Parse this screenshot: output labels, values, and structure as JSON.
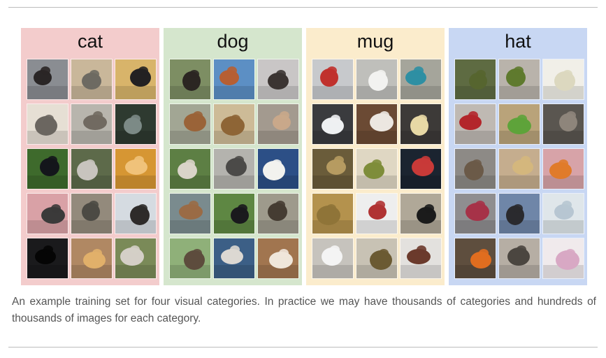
{
  "figure": {
    "panels": [
      {
        "title": "cat",
        "bg": "#f3cccc",
        "images": [
          {
            "bg": "#8a8d92",
            "fg": "#2a2626"
          },
          {
            "bg": "#c9b79a",
            "fg": "#6d6a62"
          },
          {
            "bg": "#d8b46a",
            "fg": "#232122"
          },
          {
            "bg": "#e6dfd4",
            "fg": "#6b6660"
          },
          {
            "bg": "#b8b5ad",
            "fg": "#716a61"
          },
          {
            "bg": "#2e3a30",
            "fg": "#7c8a86"
          },
          {
            "bg": "#3e6a2c",
            "fg": "#14161b"
          },
          {
            "bg": "#5d6a4a",
            "fg": "#c8c4be"
          },
          {
            "bg": "#d69633",
            "fg": "#f0c27a"
          },
          {
            "bg": "#d9a1a6",
            "fg": "#3b3a3a"
          },
          {
            "bg": "#938a7c",
            "fg": "#4c4a44"
          },
          {
            "bg": "#d5dbe1",
            "fg": "#2e2b2a"
          },
          {
            "bg": "#1a1a1c",
            "fg": "#050505"
          },
          {
            "bg": "#b08863",
            "fg": "#e1b06a"
          },
          {
            "bg": "#7a8a58",
            "fg": "#d4cfc7"
          }
        ]
      },
      {
        "title": "dog",
        "bg": "#d5e6cd",
        "images": [
          {
            "bg": "#7d8e63",
            "fg": "#2b2622"
          },
          {
            "bg": "#5c8fc4",
            "fg": "#b65f33"
          },
          {
            "bg": "#c9c6c6",
            "fg": "#3b3432"
          },
          {
            "bg": "#a2a694",
            "fg": "#9a6338"
          },
          {
            "bg": "#cdbb97",
            "fg": "#8e6536"
          },
          {
            "bg": "#a39a8f",
            "fg": "#c9a88a"
          },
          {
            "bg": "#5d7f44",
            "fg": "#d9d4c9"
          },
          {
            "bg": "#b4b3ae",
            "fg": "#4b4a48"
          },
          {
            "bg": "#2c4f86",
            "fg": "#f2f2ee"
          },
          {
            "bg": "#7a8b8e",
            "fg": "#9a6b45"
          },
          {
            "bg": "#5e8743",
            "fg": "#1a1a1d"
          },
          {
            "bg": "#9e9a8c",
            "fg": "#453c32"
          },
          {
            "bg": "#8fb079",
            "fg": "#5d4c3d"
          },
          {
            "bg": "#3c5f86",
            "fg": "#dcd8d2"
          },
          {
            "bg": "#a1754f",
            "fg": "#efe6da"
          }
        ]
      },
      {
        "title": "mug",
        "bg": "#fbeccc",
        "images": [
          {
            "bg": "#c7c9cc",
            "fg": "#c0312d"
          },
          {
            "bg": "#bfbfbb",
            "fg": "#f2f2f0"
          },
          {
            "bg": "#a5a59b",
            "fg": "#2e8fa3"
          },
          {
            "bg": "#3a3b3e",
            "fg": "#eef0f2"
          },
          {
            "bg": "#6b4a34",
            "fg": "#ece7e1"
          },
          {
            "bg": "#3d3a38",
            "fg": "#e7d8a5"
          },
          {
            "bg": "#6a5c3a",
            "fg": "#b69b61"
          },
          {
            "bg": "#dfd7c3",
            "fg": "#7e8d3a"
          },
          {
            "bg": "#1b2430",
            "fg": "#c83a38"
          },
          {
            "bg": "#b4924d",
            "fg": "#8f7438"
          },
          {
            "bg": "#eeeeee",
            "fg": "#b03333"
          },
          {
            "bg": "#b0a898",
            "fg": "#1b1b1b"
          },
          {
            "bg": "#c6c3bd",
            "fg": "#f4f4f4"
          },
          {
            "bg": "#c8c2b4",
            "fg": "#6b5a32"
          },
          {
            "bg": "#e3e1de",
            "fg": "#6b3a2c"
          }
        ]
      },
      {
        "title": "hat",
        "bg": "#c8d7f3",
        "images": [
          {
            "bg": "#5e6b42",
            "fg": "#56652f"
          },
          {
            "bg": "#b9b3ab",
            "fg": "#5f7a2e"
          },
          {
            "bg": "#f1efe8",
            "fg": "#dcd8bf"
          },
          {
            "bg": "#bfb9b3",
            "fg": "#b3262b"
          },
          {
            "bg": "#b9a37a",
            "fg": "#5ea33a"
          },
          {
            "bg": "#5a5650",
            "fg": "#8e857b"
          },
          {
            "bg": "#8d8a86",
            "fg": "#6b5a48"
          },
          {
            "bg": "#c5ad8e",
            "fg": "#d4b77d"
          },
          {
            "bg": "#d7a3a8",
            "fg": "#e07b2a"
          },
          {
            "bg": "#8f8e90",
            "fg": "#a63248"
          },
          {
            "bg": "#6f86a8",
            "fg": "#2a2a2e"
          },
          {
            "bg": "#dfe6ea",
            "fg": "#b7c6d2"
          },
          {
            "bg": "#5e4e3e",
            "fg": "#e06d1f"
          },
          {
            "bg": "#b6aea4",
            "fg": "#4b4640"
          },
          {
            "bg": "#f0eaec",
            "fg": "#d8a8c4"
          }
        ]
      }
    ]
  },
  "caption": "An example training set for four visual categories. In practice we may have thousands of categories and hundreds of thousands of images for each category."
}
